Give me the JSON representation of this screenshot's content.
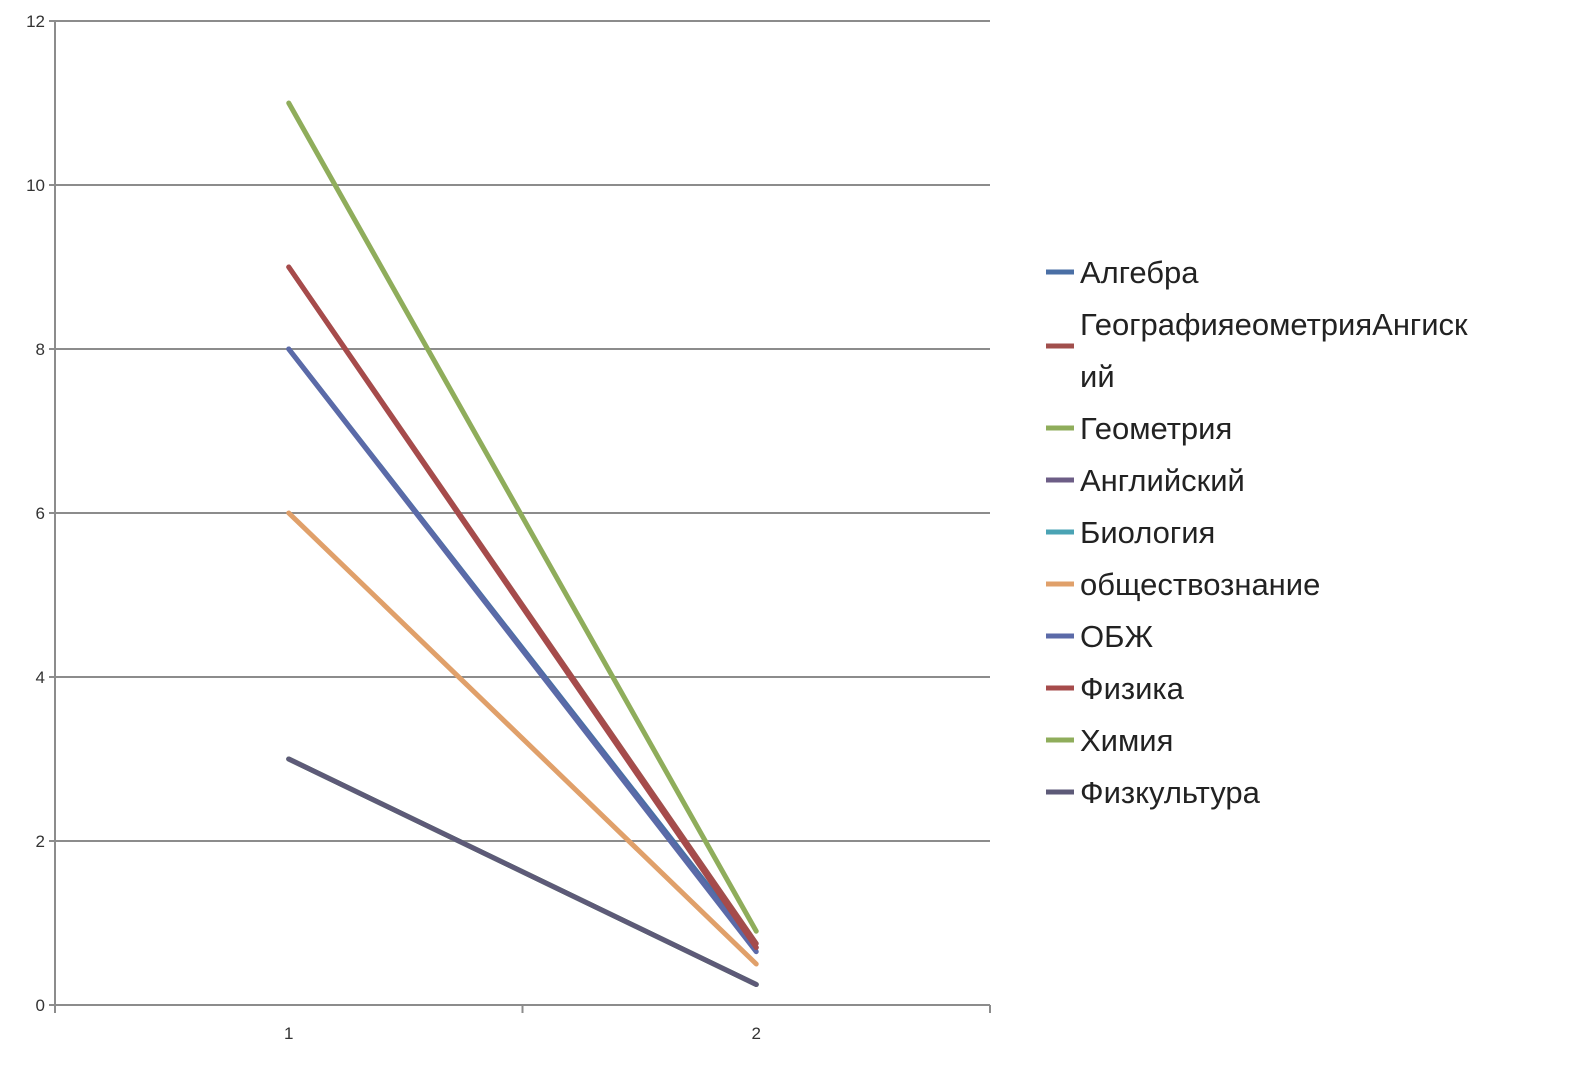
{
  "chart_data": {
    "type": "line",
    "x": [
      "1",
      "2"
    ],
    "ylim": [
      0,
      12
    ],
    "yticks": [
      0,
      2,
      4,
      6,
      8,
      10,
      12
    ],
    "grid": "horizontal",
    "legend_position": "right",
    "series": [
      {
        "name": "Алгебра",
        "color": "#4a6fa5",
        "values": [
          8,
          0.7
        ]
      },
      {
        "name": "ГеографияеометрияАнгискийий",
        "legend_lines": [
          "ГеографияеометрияАнгиск",
          "ий"
        ],
        "color": "#a14f4c",
        "values": [
          9,
          0.75
        ]
      },
      {
        "name": "Геометрия",
        "color": "#8fad5b",
        "values": [
          11,
          0.9
        ]
      },
      {
        "name": "Английский",
        "color": "#6c5d86",
        "values": [
          3,
          0.25
        ]
      },
      {
        "name": "Биология",
        "color": "#4aa3b4",
        "values": [
          3,
          0.25
        ]
      },
      {
        "name": "обществознание",
        "color": "#e0a06a",
        "values": [
          6,
          0.5
        ]
      },
      {
        "name": "ОБЖ",
        "color": "#5b6aa8",
        "values": [
          8,
          0.65
        ]
      },
      {
        "name": "Физика",
        "color": "#a64b4b",
        "values": [
          9,
          0.7
        ]
      },
      {
        "name": "Химия",
        "color": "#8fad5b",
        "values": [
          3,
          0.25
        ]
      },
      {
        "name": "Физкультура",
        "color": "#5d5a78",
        "values": [
          3,
          0.25
        ]
      }
    ]
  }
}
